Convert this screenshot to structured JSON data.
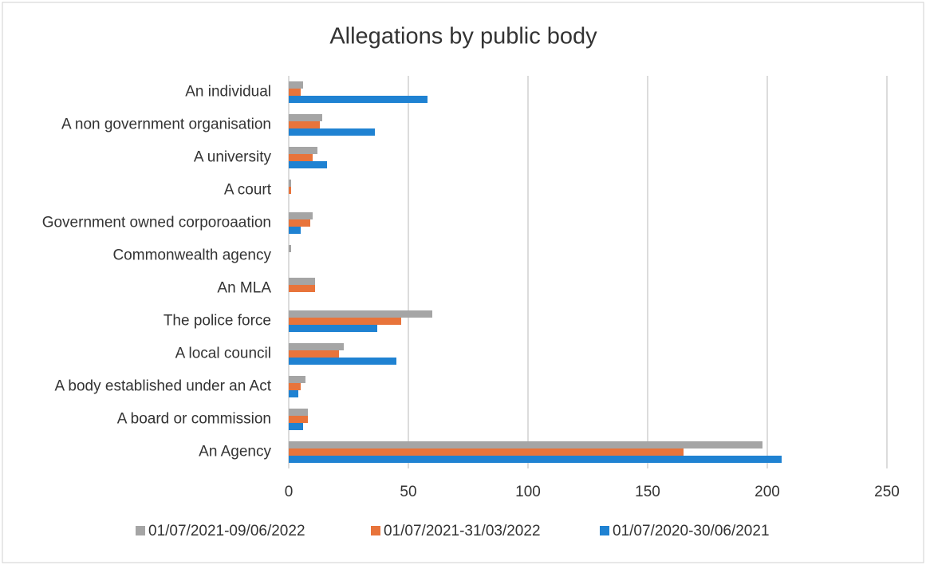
{
  "chart_data": {
    "type": "hbar",
    "title": "Allegations by public body",
    "categories": [
      "An individual",
      "A non government organisation",
      "A university",
      "A court",
      "Government owned corporoaation",
      "Commonwealth agency",
      "An MLA",
      "The police force",
      "A local council",
      "A body established under an Act",
      "A board or commission",
      "An Agency"
    ],
    "series": [
      {
        "name": "01/07/2021-09/06/2022",
        "color": "#a5a5a5",
        "values": [
          6,
          14,
          12,
          1,
          10,
          1,
          11,
          60,
          23,
          7,
          8,
          198
        ]
      },
      {
        "name": "01/07/2021-31/03/2022",
        "color": "#e8743b",
        "values": [
          5,
          13,
          10,
          1,
          9,
          0,
          11,
          47,
          21,
          5,
          8,
          165
        ]
      },
      {
        "name": "01/07/2020-30/06/2021",
        "color": "#1f82d2",
        "values": [
          58,
          36,
          16,
          0,
          5,
          0,
          0,
          37,
          45,
          4,
          6,
          206
        ]
      }
    ],
    "xlim": [
      0,
      250
    ],
    "xticks": [
      0,
      50,
      100,
      150,
      200,
      250
    ],
    "grid": true,
    "legend": "bottom"
  }
}
